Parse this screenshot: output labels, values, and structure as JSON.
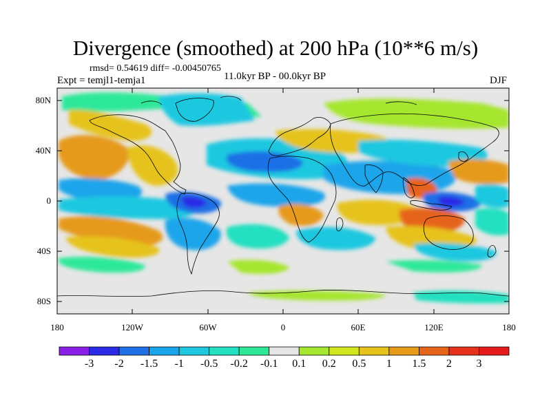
{
  "title": "Divergence (smoothed) at 200 hPa (10**6 m/s)",
  "stats": "rmsd= 0.54619 diff= -0.00450765",
  "experiment": "Expt = temjl1-temja1",
  "period": "11.0kyr BP - 00.0kyr BP",
  "season": "DJF",
  "axes": {
    "lat_ticks": [
      "80N",
      "40N",
      "0",
      "40S",
      "80S"
    ],
    "lon_ticks": [
      "180",
      "120W",
      "60W",
      "0",
      "60E",
      "120E",
      "180"
    ]
  },
  "colorbar": {
    "labels": [
      "-3",
      "-2",
      "-1.5",
      "-1",
      "-0.5",
      "-0.2",
      "-0.1",
      "0.1",
      "0.2",
      "0.5",
      "1",
      "1.5",
      "2",
      "3"
    ],
    "colors": [
      "#8a1fe6",
      "#2a2ae6",
      "#1f6fe6",
      "#1aa5ea",
      "#1ec8e0",
      "#22e0c0",
      "#2ee89a",
      "#e6e6e6",
      "#a5e62e",
      "#d2e61e",
      "#e6c31a",
      "#e69a1a",
      "#e6641a",
      "#e6321a",
      "#e61a1a"
    ],
    "light_color": "#e6e6e6"
  }
}
